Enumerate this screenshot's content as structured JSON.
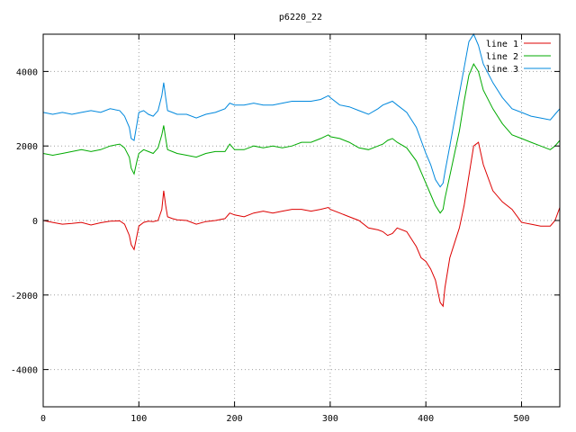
{
  "chart_data": {
    "type": "line",
    "title": "p6220_22",
    "xlabel": "",
    "ylabel": "",
    "xlim": [
      0,
      540
    ],
    "ylim": [
      -5000,
      5000
    ],
    "xticks": [
      0,
      100,
      200,
      300,
      400,
      500
    ],
    "yticks": [
      -4000,
      -2000,
      0,
      2000,
      4000
    ],
    "grid": true,
    "legend_position": "top-right",
    "series": [
      {
        "name": "line 1",
        "color": "#dd0000",
        "x": [
          0,
          10,
          20,
          30,
          40,
          50,
          60,
          70,
          80,
          85,
          90,
          92,
          95,
          98,
          100,
          105,
          110,
          115,
          120,
          124,
          126,
          128,
          130,
          135,
          140,
          150,
          160,
          170,
          180,
          190,
          195,
          200,
          210,
          220,
          230,
          240,
          250,
          260,
          270,
          280,
          290,
          298,
          300,
          310,
          320,
          330,
          340,
          350,
          355,
          360,
          365,
          370,
          380,
          390,
          395,
          400,
          405,
          410,
          415,
          418,
          420,
          425,
          430,
          435,
          440,
          445,
          450,
          455,
          460,
          470,
          480,
          490,
          500,
          510,
          520,
          530,
          535,
          540
        ],
        "y": [
          0,
          -50,
          -100,
          -80,
          -50,
          -120,
          -60,
          -20,
          -10,
          -100,
          -400,
          -650,
          -780,
          -400,
          -150,
          -50,
          -20,
          -30,
          0,
          300,
          800,
          400,
          100,
          50,
          20,
          0,
          -100,
          -30,
          0,
          50,
          200,
          150,
          100,
          200,
          250,
          200,
          250,
          300,
          300,
          250,
          300,
          350,
          300,
          200,
          100,
          0,
          -200,
          -250,
          -300,
          -400,
          -350,
          -200,
          -300,
          -700,
          -1000,
          -1100,
          -1300,
          -1600,
          -2200,
          -2300,
          -1800,
          -1000,
          -600,
          -200,
          400,
          1200,
          2000,
          2100,
          1500,
          800,
          500,
          300,
          -50,
          -100,
          -150,
          -150,
          0,
          350
        ]
      },
      {
        "name": "line 2",
        "color": "#00aa00",
        "x": [
          0,
          10,
          20,
          30,
          40,
          50,
          60,
          70,
          80,
          85,
          90,
          92,
          95,
          98,
          100,
          105,
          110,
          115,
          120,
          124,
          126,
          128,
          130,
          135,
          140,
          150,
          160,
          170,
          180,
          190,
          195,
          200,
          210,
          220,
          230,
          240,
          250,
          260,
          270,
          280,
          290,
          298,
          300,
          310,
          320,
          330,
          340,
          350,
          355,
          360,
          365,
          370,
          380,
          390,
          395,
          400,
          405,
          410,
          415,
          418,
          420,
          425,
          430,
          435,
          440,
          445,
          450,
          455,
          460,
          470,
          480,
          490,
          500,
          510,
          520,
          530,
          535,
          540
        ],
        "y": [
          1800,
          1750,
          1800,
          1850,
          1900,
          1850,
          1900,
          2000,
          2050,
          1950,
          1700,
          1400,
          1250,
          1600,
          1800,
          1900,
          1850,
          1800,
          1950,
          2300,
          2550,
          2200,
          1900,
          1850,
          1800,
          1750,
          1700,
          1800,
          1850,
          1850,
          2050,
          1900,
          1900,
          2000,
          1950,
          2000,
          1950,
          2000,
          2100,
          2100,
          2200,
          2300,
          2250,
          2200,
          2100,
          1950,
          1900,
          2000,
          2050,
          2150,
          2200,
          2100,
          1950,
          1600,
          1300,
          1000,
          700,
          400,
          200,
          300,
          600,
          1200,
          1800,
          2400,
          3200,
          3900,
          4200,
          4000,
          3500,
          3000,
          2600,
          2300,
          2200,
          2100,
          2000,
          1900,
          2000,
          2150
        ]
      },
      {
        "name": "line 3",
        "color": "#0088dd",
        "x": [
          0,
          10,
          20,
          30,
          40,
          50,
          60,
          70,
          80,
          85,
          90,
          92,
          95,
          98,
          100,
          105,
          110,
          115,
          120,
          124,
          126,
          128,
          130,
          135,
          140,
          150,
          160,
          170,
          180,
          190,
          195,
          200,
          210,
          220,
          230,
          240,
          250,
          260,
          270,
          280,
          290,
          298,
          300,
          310,
          320,
          330,
          340,
          350,
          355,
          360,
          365,
          370,
          380,
          390,
          395,
          400,
          405,
          410,
          415,
          418,
          420,
          425,
          430,
          435,
          440,
          445,
          450,
          455,
          460,
          470,
          480,
          490,
          500,
          510,
          520,
          530,
          535,
          540
        ],
        "y": [
          2900,
          2850,
          2900,
          2850,
          2900,
          2950,
          2900,
          3000,
          2950,
          2800,
          2500,
          2200,
          2150,
          2600,
          2900,
          2950,
          2850,
          2800,
          2950,
          3350,
          3700,
          3300,
          2950,
          2900,
          2850,
          2850,
          2750,
          2850,
          2900,
          3000,
          3150,
          3100,
          3100,
          3150,
          3100,
          3100,
          3150,
          3200,
          3200,
          3200,
          3250,
          3350,
          3300,
          3100,
          3050,
          2950,
          2850,
          3000,
          3100,
          3150,
          3200,
          3100,
          2900,
          2500,
          2150,
          1800,
          1500,
          1100,
          900,
          1000,
          1300,
          2000,
          2700,
          3400,
          4100,
          4800,
          5000,
          4700,
          4200,
          3700,
          3300,
          3000,
          2900,
          2800,
          2750,
          2700,
          2850,
          3000
        ]
      }
    ]
  }
}
